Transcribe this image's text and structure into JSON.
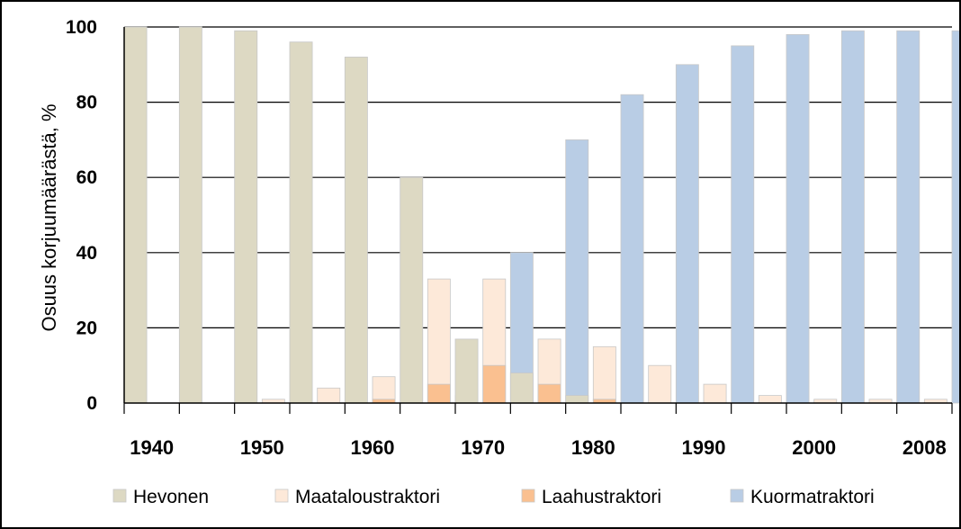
{
  "chart_data": {
    "type": "bar",
    "title": "",
    "xlabel": "",
    "ylabel": "Osuus korjuumäärästä, %",
    "ylim": [
      0,
      100
    ],
    "yticks": [
      0,
      20,
      40,
      60,
      80,
      100
    ],
    "xtick_labels": [
      "1940",
      "1950",
      "1960",
      "1970",
      "1980",
      "1990",
      "2000",
      "2008"
    ],
    "categories": [
      "1940",
      "1945",
      "1950",
      "1955",
      "1960",
      "1965",
      "1970",
      "1975",
      "1980",
      "1985",
      "1990",
      "1995",
      "2000",
      "2005",
      "2008"
    ],
    "grid": "horizontal",
    "legend_position": "bottom",
    "series": [
      {
        "name": "Hevonen",
        "color": "#ddd9c3",
        "values": [
          100,
          100,
          99,
          96,
          92,
          60,
          17,
          8,
          2,
          0,
          0,
          0,
          0,
          0,
          0
        ]
      },
      {
        "name": "Maataloustraktori",
        "color": "#fde9d9",
        "values": [
          0,
          0,
          1,
          4,
          7,
          33,
          33,
          17,
          15,
          10,
          5,
          2,
          1,
          1,
          1
        ]
      },
      {
        "name": "Laahustraktori",
        "color": "#fac090",
        "values": [
          0,
          0,
          0,
          0,
          1,
          5,
          10,
          5,
          1,
          0,
          0,
          0,
          0,
          0,
          0
        ]
      },
      {
        "name": "Kuormatraktori",
        "color": "#b9cde5",
        "values": [
          0,
          0,
          0,
          0,
          0,
          2,
          40,
          70,
          82,
          90,
          95,
          98,
          99,
          99,
          99
        ]
      }
    ]
  }
}
